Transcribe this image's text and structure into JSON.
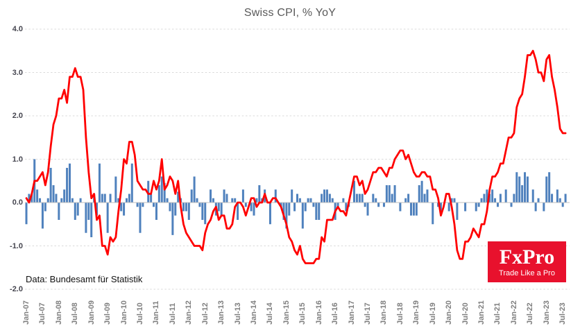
{
  "title": "Swiss CPI, % YoY",
  "footer": {
    "source_note": "Data: Bundesamt für Statistik"
  },
  "logo": {
    "name": "FxPro",
    "tagline": "Trade Like a Pro",
    "bg_color": "#e8112d"
  },
  "colors": {
    "bar": "#4f81bd",
    "line": "#ff0000",
    "grid": "#d9d9d9",
    "zero_line": "#bfbfbf",
    "title": "#595959",
    "y_label": "#45454f",
    "x_label": "#7f7f7f"
  },
  "chart_data": {
    "type": "bar",
    "subtype": "bar + line combo, monthly time series",
    "title": "Swiss CPI, % YoY",
    "xlabel": "",
    "ylabel": "",
    "ylim": [
      -2.0,
      4.0
    ],
    "grid": "horizontal dashed gridlines at whole numbers, solid zero line",
    "legend": "none",
    "y_tick_labels": [
      "4.0",
      "3.0",
      "2.0",
      "1.0",
      "0.0",
      "-1.0",
      "-2.0"
    ],
    "x_tick_labels": [
      "Jan-07",
      "Jul-07",
      "Jan-08",
      "Jul-08",
      "Jan-09",
      "Jul-09",
      "Jan-10",
      "Jul-10",
      "Jan-11",
      "Jul-11",
      "Jan-12",
      "Jul-12",
      "Jan-13",
      "Jul-13",
      "Jan-14",
      "Jul-14",
      "Jan-15",
      "Jul-15",
      "Jan-16",
      "Jul-16",
      "Jan-17",
      "Jul-17",
      "Jan-18",
      "Jul-18",
      "Jan-19",
      "Jul-19",
      "Jan-20",
      "Jul-20",
      "Jan-21",
      "Jul-21",
      "Jan-22",
      "Jul-22",
      "Jan-23",
      "Jul-23"
    ],
    "x_months_per_tick": 6,
    "months_start": "Jan-07",
    "months_end": "Aug-23",
    "series": [
      {
        "name": "CPI year-over-year % (red line)",
        "type": "line",
        "color": "#ff0000",
        "values": [
          0.1,
          0.0,
          0.2,
          0.5,
          0.5,
          0.6,
          0.7,
          0.4,
          0.7,
          1.3,
          1.8,
          2.0,
          2.4,
          2.4,
          2.6,
          2.3,
          2.9,
          2.9,
          3.1,
          2.9,
          2.9,
          2.6,
          1.5,
          0.7,
          0.1,
          0.2,
          -0.4,
          -0.3,
          -1.0,
          -1.0,
          -1.2,
          -0.8,
          -0.9,
          -0.8,
          -0.2,
          0.3,
          1.0,
          0.9,
          1.4,
          1.4,
          1.1,
          0.5,
          0.4,
          0.3,
          0.3,
          0.2,
          0.2,
          0.5,
          0.3,
          0.5,
          1.0,
          0.3,
          0.4,
          0.6,
          0.5,
          0.2,
          0.5,
          -0.1,
          -0.5,
          -0.7,
          -0.8,
          -0.9,
          -1.0,
          -1.0,
          -1.0,
          -1.1,
          -0.7,
          -0.5,
          -0.4,
          -0.2,
          -0.1,
          -0.4,
          -0.3,
          -0.3,
          -0.6,
          -0.6,
          -0.5,
          -0.1,
          0.0,
          0.0,
          -0.1,
          -0.3,
          -0.1,
          0.1,
          0.1,
          -0.1,
          0.0,
          0.0,
          0.2,
          0.0,
          0.0,
          0.1,
          0.1,
          0.0,
          -0.1,
          -0.3,
          -0.5,
          -0.8,
          -0.9,
          -1.1,
          -1.2,
          -1.0,
          -1.3,
          -1.4,
          -1.4,
          -1.4,
          -1.4,
          -1.3,
          -1.3,
          -0.8,
          -0.9,
          -0.4,
          -0.4,
          -0.4,
          -0.2,
          -0.1,
          -0.2,
          -0.2,
          -0.3,
          0.0,
          0.3,
          0.6,
          0.6,
          0.4,
          0.5,
          0.2,
          0.3,
          0.5,
          0.7,
          0.7,
          0.8,
          0.8,
          0.7,
          0.6,
          0.8,
          0.8,
          1.0,
          1.1,
          1.2,
          1.2,
          1.0,
          1.1,
          0.9,
          0.7,
          0.6,
          0.6,
          0.7,
          0.7,
          0.6,
          0.6,
          0.3,
          0.3,
          0.1,
          -0.3,
          -0.1,
          0.2,
          0.2,
          -0.1,
          -0.5,
          -1.1,
          -1.3,
          -1.3,
          -0.9,
          -0.9,
          -0.8,
          -0.6,
          -0.7,
          -0.8,
          -0.5,
          -0.5,
          -0.2,
          0.3,
          0.6,
          0.6,
          0.7,
          0.9,
          0.9,
          1.2,
          1.5,
          1.5,
          1.6,
          2.2,
          2.4,
          2.5,
          2.9,
          3.4,
          3.4,
          3.5,
          3.3,
          3.0,
          3.0,
          2.8,
          3.3,
          3.4,
          2.9,
          2.6,
          2.2,
          1.7,
          1.6,
          1.6
        ]
      },
      {
        "name": "CPI month-over-month % (blue bars)",
        "type": "bar",
        "color": "#4f81bd",
        "values": [
          -0.5,
          0.2,
          0.2,
          1.0,
          0.3,
          0.1,
          -0.6,
          -0.2,
          0.1,
          0.8,
          0.4,
          0.2,
          -0.4,
          0.1,
          0.3,
          0.8,
          0.9,
          0.1,
          -0.4,
          -0.3,
          0.1,
          0.0,
          -0.7,
          -0.4,
          -0.8,
          0.2,
          -0.3,
          0.9,
          0.2,
          0.2,
          -0.7,
          0.2,
          0.0,
          0.6,
          0.1,
          -0.2,
          -0.3,
          0.1,
          0.2,
          0.9,
          0.0,
          -0.1,
          -0.7,
          -0.1,
          0.0,
          0.5,
          0.2,
          -0.1,
          -0.4,
          0.4,
          0.6,
          0.45,
          0.1,
          -0.2,
          -0.75,
          -0.3,
          0.25,
          0.1,
          -0.2,
          -0.2,
          -0.4,
          0.3,
          0.6,
          0.1,
          -0.1,
          -0.4,
          -0.5,
          0.0,
          0.3,
          0.1,
          -0.3,
          -0.2,
          -0.3,
          0.3,
          0.2,
          0.0,
          0.1,
          0.1,
          -0.4,
          0.0,
          0.3,
          -0.1,
          0.0,
          -0.2,
          -0.3,
          0.1,
          0.4,
          0.1,
          0.3,
          0.0,
          -0.5,
          0.0,
          0.3,
          0.0,
          -0.1,
          -0.4,
          -0.6,
          -0.3,
          0.3,
          -0.2,
          0.2,
          0.1,
          -0.6,
          -0.2,
          0.1,
          0.1,
          -0.1,
          -0.4,
          -0.4,
          0.2,
          0.3,
          0.3,
          0.2,
          0.1,
          -0.4,
          -0.1,
          0.0,
          0.1,
          -0.2,
          -0.1,
          0.0,
          0.5,
          0.2,
          0.2,
          0.2,
          -0.1,
          -0.3,
          0.0,
          0.2,
          0.1,
          -0.1,
          0.0,
          -0.1,
          0.4,
          0.4,
          0.2,
          0.4,
          0.0,
          -0.2,
          0.0,
          0.1,
          0.2,
          -0.3,
          -0.3,
          -0.3,
          0.4,
          0.5,
          0.2,
          0.3,
          0.0,
          -0.5,
          0.0,
          -0.1,
          -0.2,
          0.0,
          0.0,
          -0.2,
          0.1,
          0.1,
          -0.4,
          0.0,
          0.0,
          -0.2,
          0.0,
          0.0,
          0.0,
          -0.2,
          -0.1,
          0.1,
          0.2,
          0.3,
          0.2,
          0.3,
          0.1,
          -0.1,
          0.2,
          0.0,
          0.3,
          0.0,
          -0.1,
          0.2,
          0.7,
          0.6,
          0.4,
          0.7,
          0.6,
          0.0,
          0.3,
          -0.2,
          0.1,
          0.0,
          -0.2,
          0.6,
          0.7,
          0.2,
          0.0,
          0.3,
          0.1,
          -0.1,
          0.2
        ]
      }
    ]
  }
}
